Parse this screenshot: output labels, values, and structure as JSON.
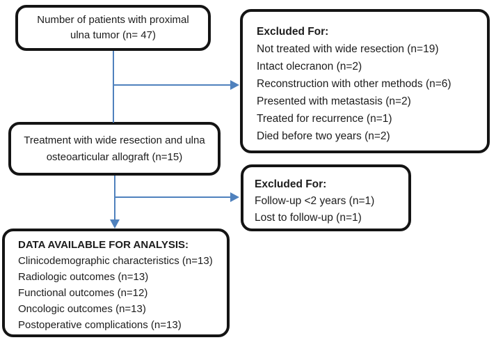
{
  "colors": {
    "box_border": "#141414",
    "arrow": "#4f81bd",
    "background": "#ffffff",
    "text": "#1c1c1c"
  },
  "boxes": {
    "patients": {
      "lines": [
        "Number of patients with proximal",
        "ulna tumor (n= 47)"
      ]
    },
    "excluded_initial": {
      "title": "Excluded For:",
      "items": [
        "Not treated with wide resection (n=19)",
        "Intact olecranon (n=2)",
        "Reconstruction with other methods (n=6)",
        "Presented with metastasis (n=2)",
        "Treated for recurrence (n=1)",
        "Died before two years (n=2)"
      ]
    },
    "treatment": {
      "lines": [
        "Treatment with wide resection and ulna",
        "osteoarticular allograft (n=15)"
      ]
    },
    "excluded_followup": {
      "title": "Excluded For:",
      "items": [
        "Follow-up <2 years (n=1)",
        "Lost to follow-up (n=1)"
      ]
    },
    "analysis": {
      "title": "DATA AVAILABLE FOR ANALYSIS:",
      "items": [
        "Clinicodemographic characteristics (n=13)",
        "Radiologic outcomes (n=13)",
        "Functional outcomes (n=12)",
        "Oncologic outcomes (n=13)",
        "Postoperative complications (n=13)"
      ]
    }
  }
}
